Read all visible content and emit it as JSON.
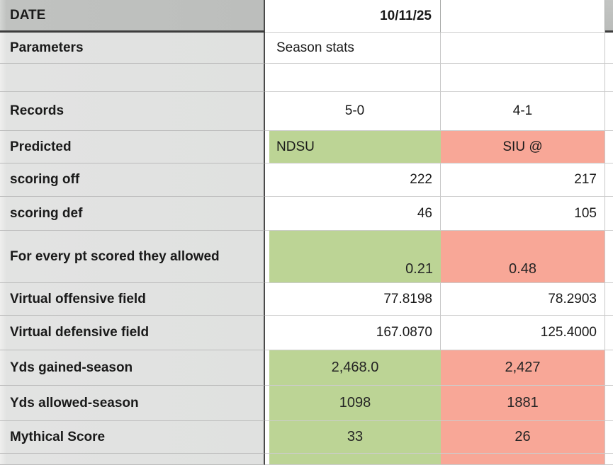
{
  "table": {
    "header": {
      "label": "DATE",
      "a": "10/11/25",
      "b": ""
    },
    "rows": [
      {
        "label": "Parameters",
        "a": "Season stats",
        "b": ""
      },
      {
        "label": "",
        "a": "",
        "b": ""
      },
      {
        "label": "Records",
        "a": "5-0",
        "b": "4-1"
      },
      {
        "label": "Predicted",
        "a": "NDSU",
        "b": "SIU @"
      },
      {
        "label": "scoring off",
        "a": "222",
        "b": "217"
      },
      {
        "label": "scoring def",
        "a": "46",
        "b": "105"
      },
      {
        "label": "For every pt scored they allowed",
        "a": "0.21",
        "b": "0.48"
      },
      {
        "label": "Virtual offensive field",
        "a": "77.8198",
        "b": "78.2903"
      },
      {
        "label": "Virtual defensive field",
        "a": "167.0870",
        "b": "125.4000"
      },
      {
        "label": "Yds gained-season",
        "a": "2,468.0",
        "b": "2,427"
      },
      {
        "label": "Yds allowed-season",
        "a": "1098",
        "b": "1881"
      },
      {
        "label": "Mythical Score",
        "a": "33",
        "b": "26"
      }
    ],
    "colors": {
      "winner_highlight_green": "#bcd495",
      "loser_highlight_salmon": "#f8a797",
      "header_gray": "#bdbfbd",
      "label_column_gray": "#e0e1e0",
      "divider_dark": "#3d3d3d"
    }
  }
}
